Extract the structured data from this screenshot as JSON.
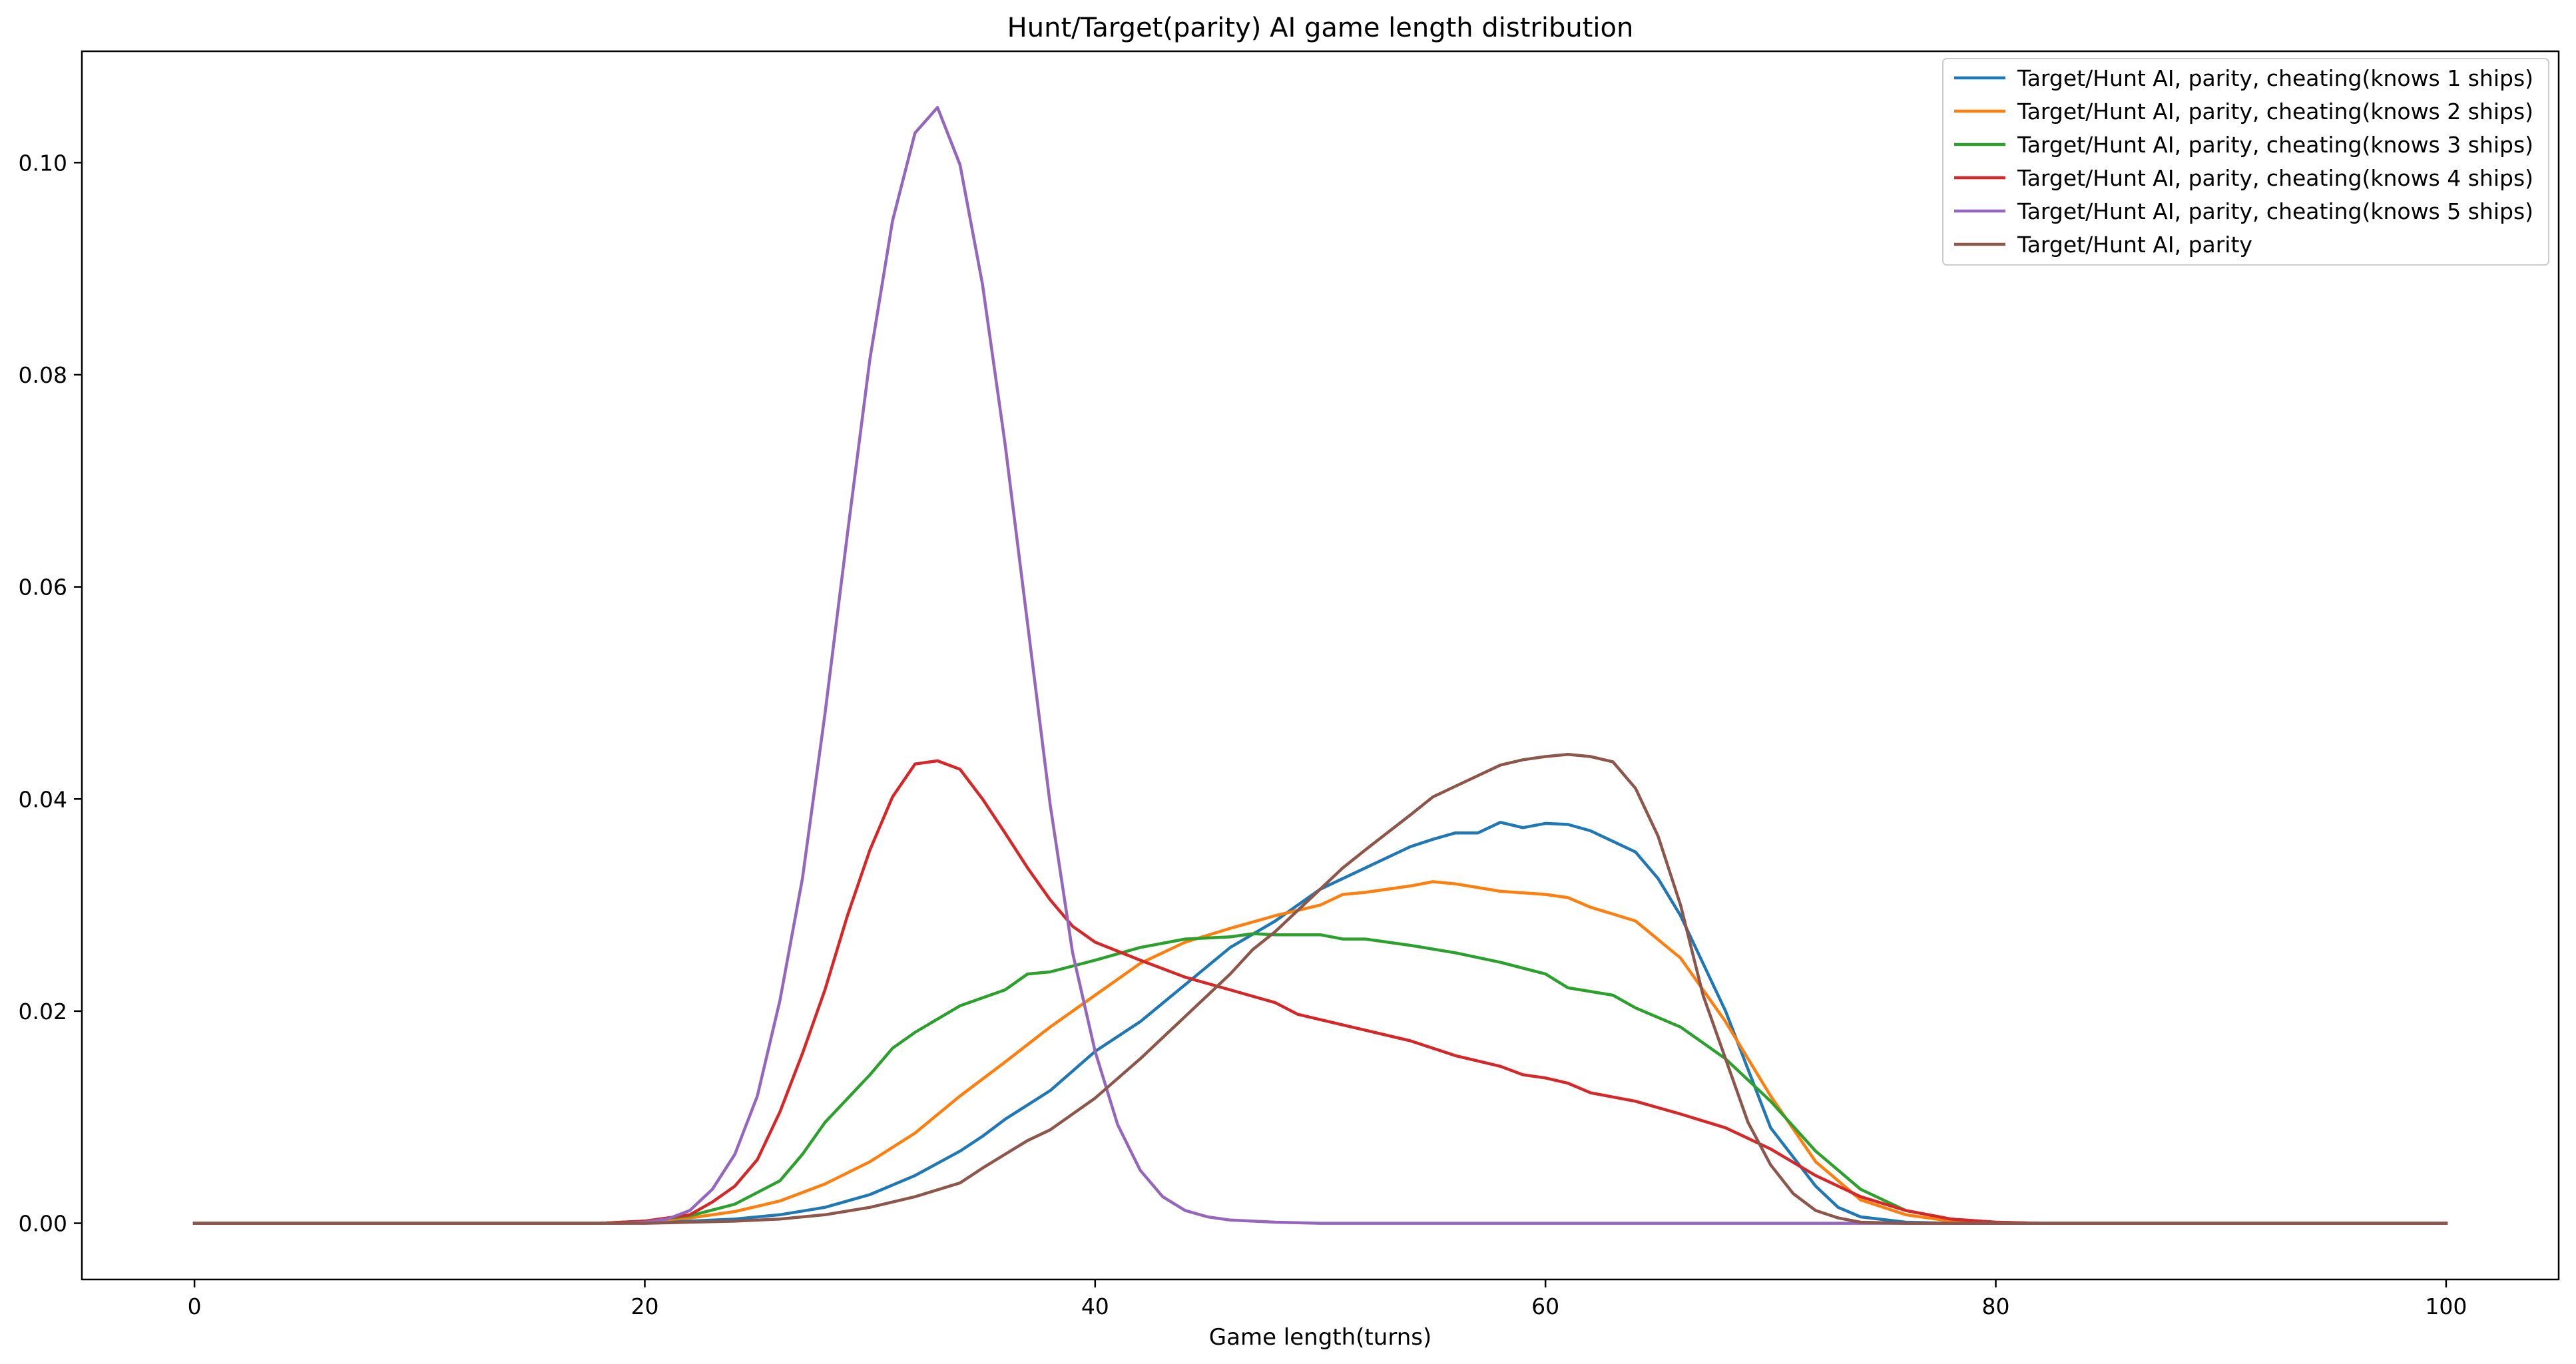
{
  "chart_data": {
    "type": "line",
    "title": "Hunt/Target(parity) AI game length distribution",
    "xlabel": "Game length(turns)",
    "ylabel": "",
    "xlim": [
      -5,
      105
    ],
    "ylim": [
      -0.0053,
      0.1105
    ],
    "xticks": [
      0,
      20,
      40,
      60,
      80,
      100
    ],
    "xtick_labels": [
      "0",
      "20",
      "40",
      "60",
      "80",
      "100"
    ],
    "yticks": [
      0.0,
      0.02,
      0.04,
      0.06,
      0.08,
      0.1
    ],
    "ytick_labels": [
      "0.00",
      "0.02",
      "0.04",
      "0.06",
      "0.08",
      "0.10"
    ],
    "grid": false,
    "legend_position": "top-right",
    "series": [
      {
        "name": "Target/Hunt AI, parity, cheating(knows 1 ships)",
        "color": "#1f77b4",
        "points": [
          [
            0,
            0
          ],
          [
            18,
            0
          ],
          [
            20,
            0.0001
          ],
          [
            22,
            0.0002
          ],
          [
            24,
            0.0004
          ],
          [
            26,
            0.0008
          ],
          [
            28,
            0.0015
          ],
          [
            30,
            0.0027
          ],
          [
            32,
            0.0045
          ],
          [
            34,
            0.0068
          ],
          [
            35,
            0.0082
          ],
          [
            36,
            0.0098
          ],
          [
            38,
            0.0125
          ],
          [
            40,
            0.0162
          ],
          [
            42,
            0.019
          ],
          [
            44,
            0.0225
          ],
          [
            46,
            0.026
          ],
          [
            48,
            0.0285
          ],
          [
            50,
            0.0315
          ],
          [
            52,
            0.0335
          ],
          [
            54,
            0.0355
          ],
          [
            55,
            0.0362
          ],
          [
            56,
            0.0368
          ],
          [
            57,
            0.0368
          ],
          [
            58,
            0.0378
          ],
          [
            59,
            0.0373
          ],
          [
            60,
            0.0377
          ],
          [
            61,
            0.0376
          ],
          [
            62,
            0.037
          ],
          [
            64,
            0.035
          ],
          [
            65,
            0.0325
          ],
          [
            66,
            0.029
          ],
          [
            68,
            0.02
          ],
          [
            70,
            0.009
          ],
          [
            72,
            0.0035
          ],
          [
            73,
            0.0015
          ],
          [
            74,
            0.0006
          ],
          [
            76,
            0.0001
          ],
          [
            78,
            0
          ],
          [
            100,
            0
          ]
        ]
      },
      {
        "name": "Target/Hunt AI, parity, cheating(knows 2 ships)",
        "color": "#ff7f0e",
        "points": [
          [
            0,
            0
          ],
          [
            18,
            0
          ],
          [
            20,
            0.0002
          ],
          [
            22,
            0.0005
          ],
          [
            24,
            0.0011
          ],
          [
            26,
            0.0021
          ],
          [
            28,
            0.0037
          ],
          [
            30,
            0.0058
          ],
          [
            32,
            0.0085
          ],
          [
            34,
            0.012
          ],
          [
            36,
            0.0152
          ],
          [
            38,
            0.0185
          ],
          [
            40,
            0.0215
          ],
          [
            42,
            0.0245
          ],
          [
            44,
            0.0265
          ],
          [
            46,
            0.0278
          ],
          [
            48,
            0.029
          ],
          [
            50,
            0.03
          ],
          [
            51,
            0.031
          ],
          [
            52,
            0.0312
          ],
          [
            54,
            0.0318
          ],
          [
            55,
            0.0322
          ],
          [
            56,
            0.032
          ],
          [
            58,
            0.0313
          ],
          [
            60,
            0.031
          ],
          [
            61,
            0.0307
          ],
          [
            62,
            0.0298
          ],
          [
            64,
            0.0285
          ],
          [
            66,
            0.025
          ],
          [
            68,
            0.019
          ],
          [
            70,
            0.012
          ],
          [
            72,
            0.0058
          ],
          [
            74,
            0.0022
          ],
          [
            76,
            0.0008
          ],
          [
            78,
            0.0002
          ],
          [
            80,
            0
          ],
          [
            100,
            0
          ]
        ]
      },
      {
        "name": "Target/Hunt AI, parity, cheating(knows 3 ships)",
        "color": "#2ca02c",
        "points": [
          [
            0,
            0
          ],
          [
            18,
            0
          ],
          [
            20,
            0.0002
          ],
          [
            22,
            0.0007
          ],
          [
            24,
            0.0018
          ],
          [
            26,
            0.004
          ],
          [
            27,
            0.0065
          ],
          [
            28,
            0.0095
          ],
          [
            30,
            0.014
          ],
          [
            31,
            0.0165
          ],
          [
            32,
            0.018
          ],
          [
            34,
            0.0205
          ],
          [
            36,
            0.022
          ],
          [
            37,
            0.0235
          ],
          [
            38,
            0.0237
          ],
          [
            40,
            0.0248
          ],
          [
            42,
            0.026
          ],
          [
            44,
            0.0268
          ],
          [
            46,
            0.027
          ],
          [
            47,
            0.0273
          ],
          [
            48,
            0.0272
          ],
          [
            50,
            0.0272
          ],
          [
            51,
            0.0268
          ],
          [
            52,
            0.0268
          ],
          [
            54,
            0.0262
          ],
          [
            56,
            0.0255
          ],
          [
            58,
            0.0246
          ],
          [
            60,
            0.0235
          ],
          [
            61,
            0.0222
          ],
          [
            63,
            0.0215
          ],
          [
            64,
            0.0203
          ],
          [
            66,
            0.0185
          ],
          [
            68,
            0.0155
          ],
          [
            70,
            0.0115
          ],
          [
            72,
            0.0068
          ],
          [
            74,
            0.0032
          ],
          [
            76,
            0.0012
          ],
          [
            78,
            0.0004
          ],
          [
            80,
            0.0001
          ],
          [
            82,
            0
          ],
          [
            100,
            0
          ]
        ]
      },
      {
        "name": "Target/Hunt AI, parity, cheating(knows 4 ships)",
        "color": "#d62728",
        "points": [
          [
            0,
            0
          ],
          [
            18,
            0
          ],
          [
            20,
            0.0002
          ],
          [
            22,
            0.0008
          ],
          [
            23,
            0.002
          ],
          [
            24,
            0.0035
          ],
          [
            25,
            0.006
          ],
          [
            26,
            0.0105
          ],
          [
            27,
            0.016
          ],
          [
            28,
            0.022
          ],
          [
            29,
            0.029
          ],
          [
            30,
            0.0352
          ],
          [
            31,
            0.0402
          ],
          [
            32,
            0.0433
          ],
          [
            33,
            0.0436
          ],
          [
            34,
            0.0428
          ],
          [
            35,
            0.04
          ],
          [
            36,
            0.0368
          ],
          [
            37,
            0.0335
          ],
          [
            38,
            0.0305
          ],
          [
            39,
            0.028
          ],
          [
            40,
            0.0265
          ],
          [
            42,
            0.0248
          ],
          [
            44,
            0.0232
          ],
          [
            46,
            0.022
          ],
          [
            48,
            0.0208
          ],
          [
            49,
            0.0197
          ],
          [
            50,
            0.0192
          ],
          [
            52,
            0.0182
          ],
          [
            54,
            0.0172
          ],
          [
            56,
            0.0158
          ],
          [
            58,
            0.0148
          ],
          [
            59,
            0.014
          ],
          [
            60,
            0.0137
          ],
          [
            61,
            0.0132
          ],
          [
            62,
            0.0123
          ],
          [
            64,
            0.0115
          ],
          [
            66,
            0.0103
          ],
          [
            68,
            0.009
          ],
          [
            70,
            0.007
          ],
          [
            72,
            0.0045
          ],
          [
            74,
            0.0025
          ],
          [
            76,
            0.0012
          ],
          [
            78,
            0.0004
          ],
          [
            80,
            0.0001
          ],
          [
            82,
            0
          ],
          [
            100,
            0
          ]
        ]
      },
      {
        "name": "Target/Hunt AI, parity, cheating(knows 5 ships)",
        "color": "#9467bd",
        "points": [
          [
            0,
            0
          ],
          [
            19,
            0
          ],
          [
            20,
            0.0001
          ],
          [
            21,
            0.0004
          ],
          [
            22,
            0.0012
          ],
          [
            23,
            0.0032
          ],
          [
            24,
            0.0065
          ],
          [
            25,
            0.012
          ],
          [
            26,
            0.021
          ],
          [
            27,
            0.0325
          ],
          [
            28,
            0.048
          ],
          [
            29,
            0.065
          ],
          [
            30,
            0.0815
          ],
          [
            31,
            0.0945
          ],
          [
            32,
            0.1028
          ],
          [
            33,
            0.1052
          ],
          [
            34,
            0.0998
          ],
          [
            35,
            0.0885
          ],
          [
            36,
            0.0735
          ],
          [
            37,
            0.0565
          ],
          [
            38,
            0.0395
          ],
          [
            39,
            0.0255
          ],
          [
            40,
            0.0162
          ],
          [
            41,
            0.0093
          ],
          [
            42,
            0.005
          ],
          [
            43,
            0.0025
          ],
          [
            44,
            0.0012
          ],
          [
            45,
            0.0006
          ],
          [
            46,
            0.0003
          ],
          [
            48,
            0.0001
          ],
          [
            50,
            0
          ],
          [
            100,
            0
          ]
        ]
      },
      {
        "name": "Target/Hunt AI, parity",
        "color": "#8c564b",
        "points": [
          [
            0,
            0
          ],
          [
            20,
            0
          ],
          [
            22,
            0.0001
          ],
          [
            24,
            0.0002
          ],
          [
            26,
            0.0004
          ],
          [
            28,
            0.0008
          ],
          [
            30,
            0.0015
          ],
          [
            32,
            0.0025
          ],
          [
            34,
            0.0038
          ],
          [
            35,
            0.0052
          ],
          [
            36,
            0.0065
          ],
          [
            37,
            0.0078
          ],
          [
            38,
            0.0088
          ],
          [
            40,
            0.0118
          ],
          [
            42,
            0.0155
          ],
          [
            44,
            0.0195
          ],
          [
            46,
            0.0235
          ],
          [
            47,
            0.0258
          ],
          [
            48,
            0.0275
          ],
          [
            50,
            0.0315
          ],
          [
            51,
            0.0335
          ],
          [
            52,
            0.0352
          ],
          [
            54,
            0.0385
          ],
          [
            55,
            0.0402
          ],
          [
            56,
            0.0412
          ],
          [
            58,
            0.0432
          ],
          [
            59,
            0.0437
          ],
          [
            60,
            0.044
          ],
          [
            61,
            0.0442
          ],
          [
            62,
            0.044
          ],
          [
            63,
            0.0435
          ],
          [
            64,
            0.041
          ],
          [
            65,
            0.0365
          ],
          [
            66,
            0.03
          ],
          [
            67,
            0.0215
          ],
          [
            68,
            0.0155
          ],
          [
            69,
            0.0095
          ],
          [
            70,
            0.0055
          ],
          [
            71,
            0.0028
          ],
          [
            72,
            0.0012
          ],
          [
            73,
            0.0005
          ],
          [
            74,
            0.0001
          ],
          [
            76,
            0
          ],
          [
            100,
            0
          ]
        ]
      }
    ]
  }
}
